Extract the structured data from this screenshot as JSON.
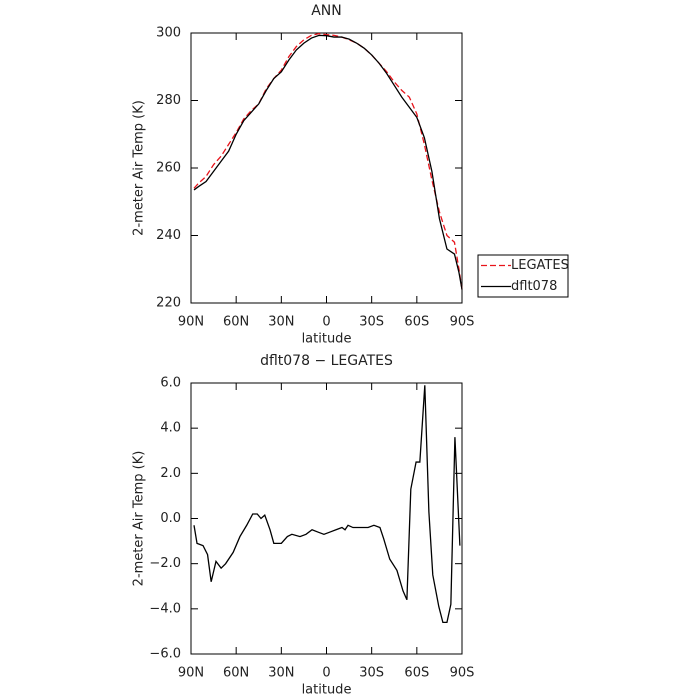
{
  "chart_data": [
    {
      "type": "line",
      "title": "ANN",
      "xlabel": "latitude",
      "ylabel": "2-meter Air Temp (K)",
      "x": [
        88,
        85,
        80,
        75,
        70,
        65,
        60,
        55,
        50,
        45,
        40,
        35,
        30,
        25,
        20,
        15,
        10,
        5,
        0,
        -5,
        -10,
        -15,
        -20,
        -25,
        -30,
        -35,
        -40,
        -45,
        -50,
        -55,
        -60,
        -65,
        -70,
        -75,
        -80,
        -85,
        -88,
        -90
      ],
      "series": [
        {
          "name": "LEGATES",
          "color": "#e8141b",
          "linestyle": "dashed",
          "values": [
            254,
            255.5,
            257.5,
            261,
            263.5,
            267,
            270.5,
            274.5,
            277,
            279,
            283.5,
            286.5,
            289,
            293,
            296,
            298,
            299.3,
            299.8,
            299.5,
            299.3,
            298.8,
            298,
            297,
            295.5,
            293.5,
            291,
            288.5,
            285.5,
            283,
            281,
            276,
            267,
            256.5,
            247,
            240,
            238,
            230,
            224
          ]
        },
        {
          "name": "dflt078",
          "color": "#000000",
          "linestyle": "solid",
          "values": [
            253.5,
            254.5,
            256,
            259,
            262,
            265,
            270,
            274,
            276.5,
            279,
            283,
            286.5,
            288.5,
            292,
            295,
            297,
            298.5,
            299.3,
            299.2,
            298.8,
            298.8,
            298.2,
            297,
            295.5,
            293.5,
            291,
            288,
            284.5,
            281,
            278,
            275,
            269,
            259,
            245,
            236,
            234.5,
            229,
            224
          ]
        }
      ],
      "xlim": [
        90,
        -90
      ],
      "xticks": [
        {
          "value": 90,
          "label": "90N"
        },
        {
          "value": 60,
          "label": "60N"
        },
        {
          "value": 30,
          "label": "30N"
        },
        0,
        {
          "value": -30,
          "label": "30S"
        },
        {
          "value": -60,
          "label": "60S"
        },
        {
          "value": -90,
          "label": "90S"
        }
      ],
      "ylim": [
        220,
        300
      ],
      "yticks": [
        220,
        240,
        260,
        280,
        300
      ],
      "legend": "outside-right"
    },
    {
      "type": "line",
      "title": "dflt078 − LEGATES",
      "xlabel": "latitude",
      "ylabel": "2-meter Air Temp (K)",
      "x": [
        88,
        86,
        82,
        79,
        76.6,
        73.4,
        70,
        67,
        62,
        57.5,
        53,
        49,
        46,
        43.5,
        41,
        37.5,
        35,
        30,
        26,
        23,
        17.6,
        13.6,
        9.6,
        5.7,
        1.7,
        -2.3,
        -6.3,
        -10.3,
        -12.3,
        -14.3,
        -17.6,
        -22,
        -27.6,
        -31.5,
        -35.5,
        -38,
        -42,
        -46.8,
        -50.8,
        -53.4,
        -56,
        -59.5,
        -62,
        -65.3,
        -68,
        -70.6,
        -74.6,
        -77.3,
        -80,
        -82.6,
        -85.3,
        -88.6
      ],
      "series": [
        {
          "color": "#000000",
          "linestyle": "solid",
          "values": [
            -0.3,
            -1.1,
            -1.2,
            -1.6,
            -2.8,
            -1.9,
            -2.2,
            -2.0,
            -1.5,
            -0.8,
            -0.3,
            0.2,
            0.2,
            0,
            0.15,
            -0.5,
            -1.1,
            -1.1,
            -0.8,
            -0.7,
            -0.8,
            -0.7,
            -0.5,
            -0.6,
            -0.7,
            -0.6,
            -0.5,
            -0.4,
            -0.5,
            -0.3,
            -0.4,
            -0.4,
            -0.4,
            -0.3,
            -0.4,
            -0.9,
            -1.8,
            -2.3,
            -3.2,
            -3.6,
            1.3,
            2.5,
            2.5,
            5.9,
            0.3,
            -2.5,
            -3.9,
            -4.6,
            -4.6,
            -3.8,
            3.6,
            -1.2
          ]
        }
      ],
      "xlim": [
        90,
        -90
      ],
      "xticks": [
        {
          "value": 90,
          "label": "90N"
        },
        {
          "value": 60,
          "label": "60N"
        },
        {
          "value": 30,
          "label": "30N"
        },
        0,
        {
          "value": -30,
          "label": "30S"
        },
        {
          "value": -60,
          "label": "60S"
        },
        {
          "value": -90,
          "label": "90S"
        }
      ],
      "ylim": [
        -6,
        6
      ],
      "yticks": [
        {
          "value": -6,
          "label": "−6.0"
        },
        {
          "value": -4,
          "label": "−4.0"
        },
        {
          "value": -2,
          "label": "−2.0"
        },
        {
          "value": 0,
          "label": "0.0"
        },
        {
          "value": 2,
          "label": "2.0"
        },
        {
          "value": 4,
          "label": "4.0"
        },
        {
          "value": 6,
          "label": "6.0"
        }
      ]
    }
  ]
}
